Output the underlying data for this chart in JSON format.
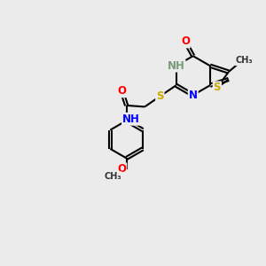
{
  "bg_color": "#ebebeb",
  "line_color": "#000000",
  "bond_width": 1.5,
  "atom_colors": {
    "O": "#ff0000",
    "N": "#0000ff",
    "S": "#ccaa00",
    "C": "#000000",
    "NH_color": "#7a9a7a",
    "NH_amide": "#0000ff"
  },
  "font_size": 8.5
}
